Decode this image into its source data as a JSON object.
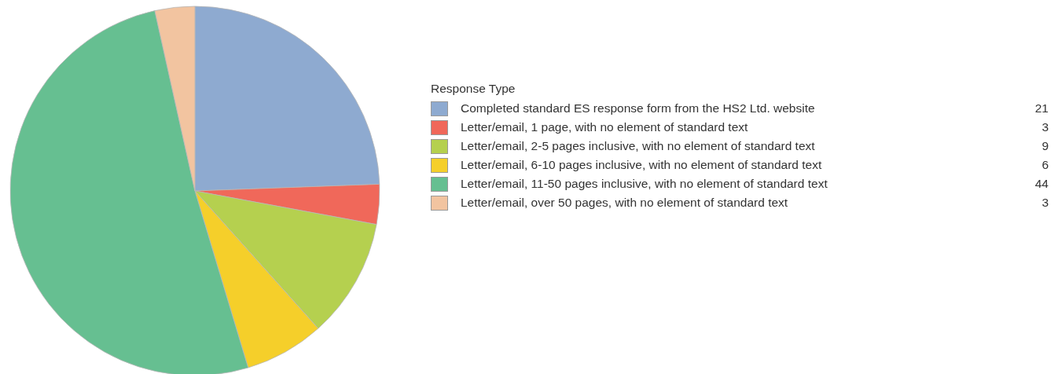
{
  "chart_data": {
    "type": "pie",
    "legend_title": "Response Type",
    "legend": "right",
    "data_labels": true,
    "categories": [
      "Completed standard ES response form from the HS2 Ltd. website",
      "Letter/email, 1 page, with no element of standard text",
      "Letter/email, 2-5 pages inclusive, with no element of standard text",
      "Letter/email, 6-10 pages inclusive, with no element of standard text",
      "Letter/email, 11-50 pages inclusive, with no element of standard text",
      "Letter/email, over 50 pages, with no element of standard text"
    ],
    "values": [
      21,
      3,
      9,
      6,
      44,
      3
    ],
    "colors": [
      "#8eaad0",
      "#f0685a",
      "#b5d04f",
      "#f5cf2a",
      "#66bf91",
      "#f2c4a0"
    ]
  }
}
